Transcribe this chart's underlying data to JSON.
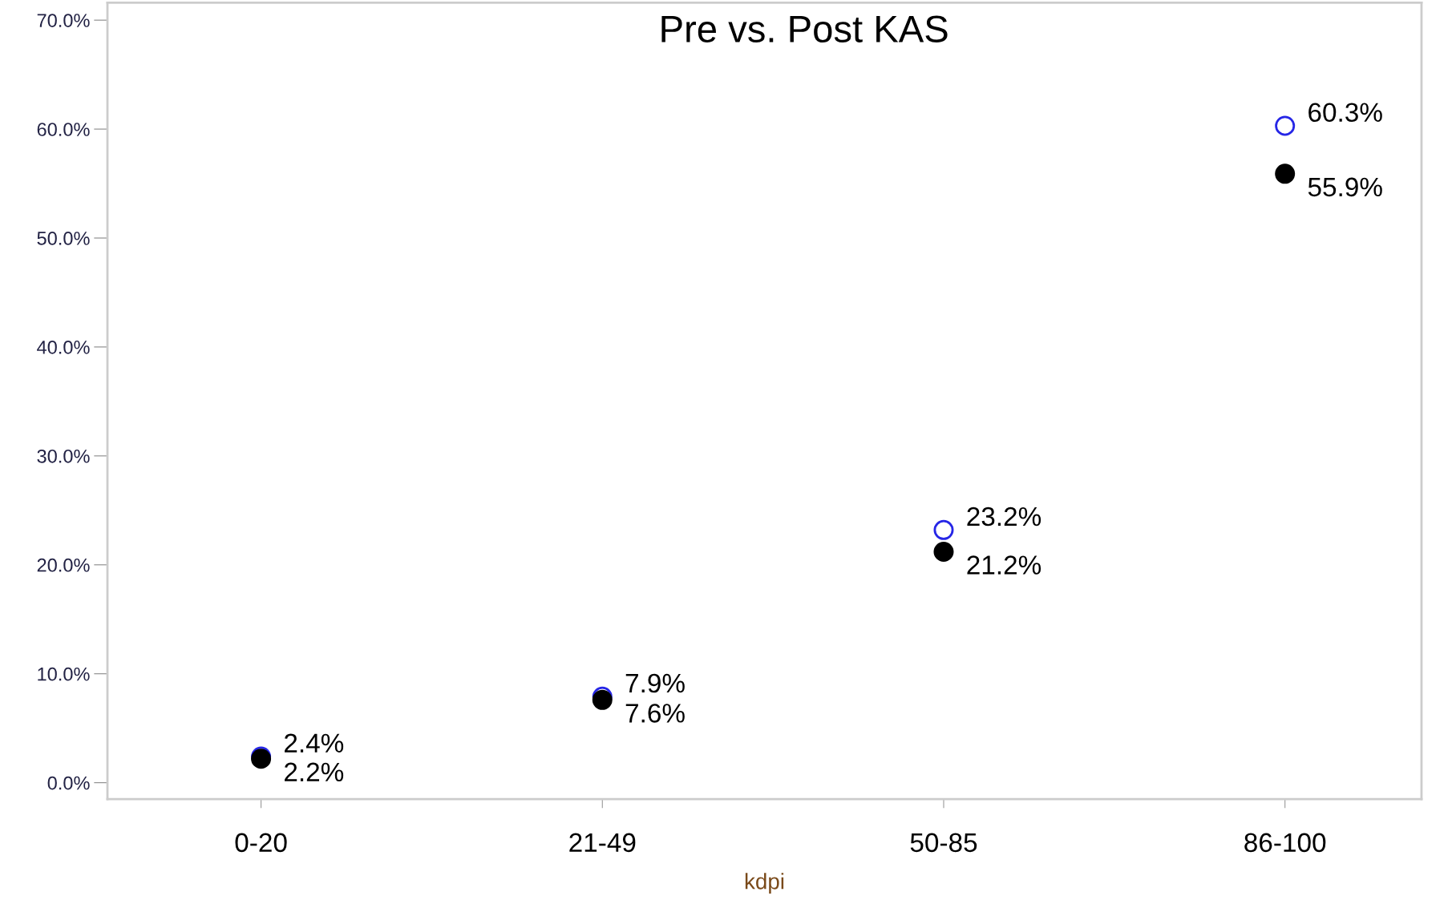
{
  "chart_data": {
    "type": "scatter",
    "title": "Pre vs. Post KAS",
    "xlabel": "kdpi",
    "categories": [
      "0-20",
      "21-49",
      "50-85",
      "86-100"
    ],
    "series": [
      {
        "color": "#2626e6",
        "values": [
          2.4,
          7.9,
          23.2,
          60.3
        ],
        "value_labels": [
          "2.4%",
          "7.9%",
          "23.2%",
          "60.3%"
        ]
      },
      {
        "color": "#000000",
        "values": [
          2.2,
          7.6,
          21.2,
          55.9
        ],
        "value_labels": [
          "2.2%",
          "7.6%",
          "21.2%",
          "55.9%"
        ]
      }
    ],
    "ylim": [
      -1.5,
      71.6
    ],
    "yticks": [
      {
        "value": 0,
        "label": "0.0%"
      },
      {
        "value": 10,
        "label": "10.0%"
      },
      {
        "value": 20,
        "label": "20.0%"
      },
      {
        "value": 30,
        "label": "30.0%"
      },
      {
        "value": 40,
        "label": "40.0%"
      },
      {
        "value": 50,
        "label": "50.0%"
      },
      {
        "value": 60,
        "label": "60.0%"
      },
      {
        "value": 70,
        "label": "70.0%"
      }
    ],
    "grid": false,
    "legend": false,
    "marker": "circle"
  }
}
